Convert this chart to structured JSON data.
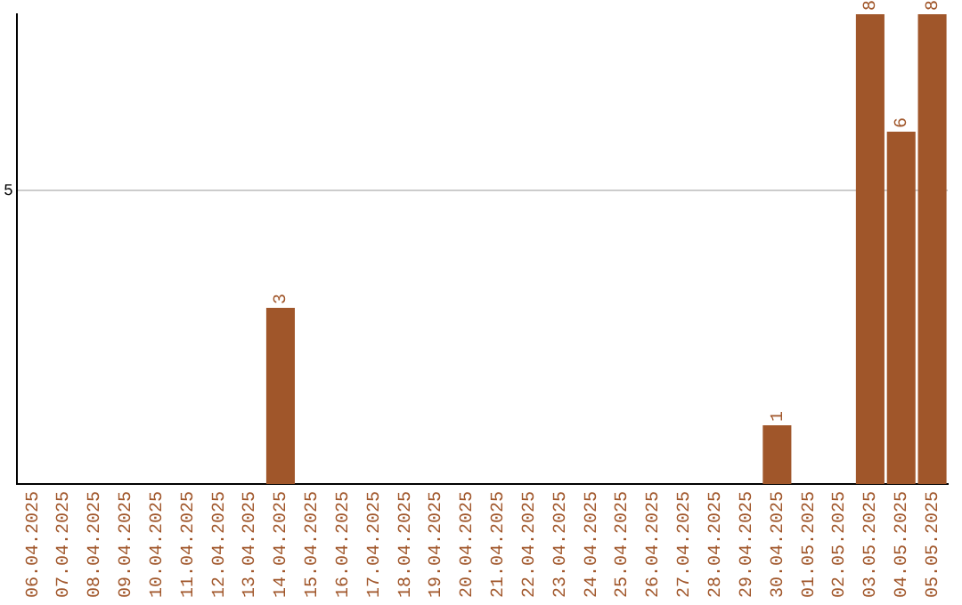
{
  "chart_data": {
    "type": "bar",
    "categories": [
      "06.04.2025",
      "07.04.2025",
      "08.04.2025",
      "09.04.2025",
      "10.04.2025",
      "11.04.2025",
      "12.04.2025",
      "13.04.2025",
      "14.04.2025",
      "15.04.2025",
      "16.04.2025",
      "17.04.2025",
      "18.04.2025",
      "19.04.2025",
      "20.04.2025",
      "21.04.2025",
      "22.04.2025",
      "23.04.2025",
      "24.04.2025",
      "25.04.2025",
      "26.04.2025",
      "27.04.2025",
      "28.04.2025",
      "29.04.2025",
      "30.04.2025",
      "01.05.2025",
      "02.05.2025",
      "03.05.2025",
      "04.05.2025",
      "05.05.2025"
    ],
    "values": [
      0,
      0,
      0,
      0,
      0,
      0,
      0,
      0,
      3,
      0,
      0,
      0,
      0,
      0,
      0,
      0,
      0,
      0,
      0,
      0,
      0,
      0,
      0,
      0,
      1,
      0,
      0,
      8,
      6,
      8
    ],
    "value_labels": [
      null,
      null,
      null,
      null,
      null,
      null,
      null,
      null,
      "3",
      null,
      null,
      null,
      null,
      null,
      null,
      null,
      null,
      null,
      null,
      null,
      null,
      null,
      null,
      null,
      "1",
      null,
      null,
      "8",
      "6",
      "8"
    ],
    "color": "#a0562a",
    "ylim": [
      0,
      8
    ],
    "yticks": [
      5
    ],
    "grid": "y",
    "legend": false
  }
}
